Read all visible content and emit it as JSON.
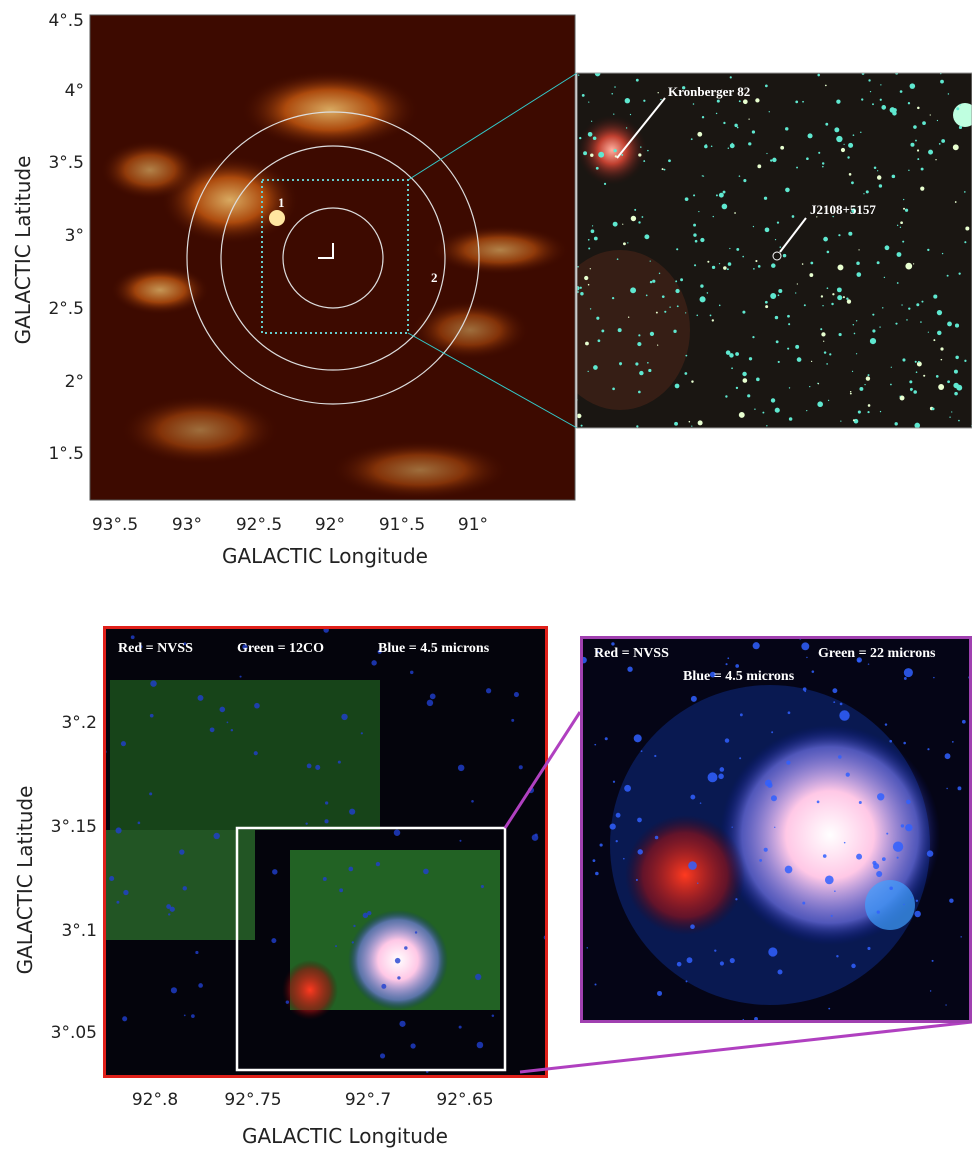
{
  "top_panel": {
    "y_ticks": [
      "4°.5",
      "4°",
      "3°.5",
      "3°",
      "2°.5",
      "2°",
      "1°.5"
    ],
    "x_ticks": [
      "93°.5",
      "93°",
      "92°.5",
      "92°",
      "91°.5",
      "91°"
    ],
    "y_label": "GALACTIC Latitude",
    "x_label": "GALACTIC Longitude",
    "annotations": [
      "1",
      "2"
    ]
  },
  "top_inset": {
    "labels": [
      "Kronberger 82",
      "J2108+5157"
    ]
  },
  "bottom_panel": {
    "legend": [
      "Red = NVSS",
      "Green = 12CO",
      "Blue = 4.5 microns"
    ],
    "y_ticks": [
      "3°.2",
      "3°.15",
      "3°.1",
      "3°.05"
    ],
    "x_ticks": [
      "92°.8",
      "92°.75",
      "92°.7",
      "92°.65"
    ],
    "y_label": "GALACTIC Latitude",
    "x_label": "GALACTIC Longitude"
  },
  "bottom_inset": {
    "legend": [
      "Red = NVSS",
      "Green = 22 microns",
      "Blue = 4.5 microns"
    ]
  }
}
